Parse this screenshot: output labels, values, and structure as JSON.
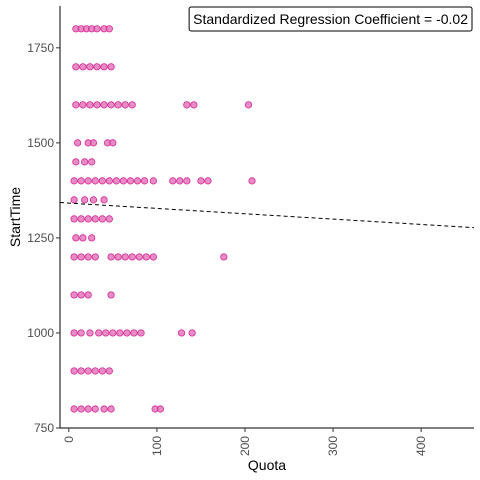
{
  "chart_data": {
    "type": "scatter",
    "title": "",
    "xlabel": "Quota",
    "ylabel": "StartTime",
    "xlim": [
      -10,
      460
    ],
    "ylim": [
      750,
      1860
    ],
    "x_ticks": [
      "0",
      "100",
      "200",
      "300",
      "400"
    ],
    "x_tick_values": [
      0,
      100,
      200,
      300,
      400
    ],
    "y_ticks": [
      "750",
      "1000",
      "1250",
      "1500",
      "1750"
    ],
    "y_tick_values": [
      750,
      1000,
      1250,
      1500,
      1750
    ],
    "grid": false,
    "annotation": "Standardized Regression Coefficient = -0.02",
    "point_color": "#D62797",
    "point_fill": "#E066B2",
    "line_color": "#000000",
    "regression_line": {
      "x": [
        -10,
        460
      ],
      "y": [
        1343,
        1277
      ]
    },
    "points": [
      {
        "x": 8,
        "y": 1800
      },
      {
        "x": 14,
        "y": 1800
      },
      {
        "x": 20,
        "y": 1800
      },
      {
        "x": 26,
        "y": 1800
      },
      {
        "x": 32,
        "y": 1800
      },
      {
        "x": 40,
        "y": 1800
      },
      {
        "x": 46,
        "y": 1800
      },
      {
        "x": 8,
        "y": 1700
      },
      {
        "x": 16,
        "y": 1700
      },
      {
        "x": 24,
        "y": 1700
      },
      {
        "x": 32,
        "y": 1700
      },
      {
        "x": 40,
        "y": 1700
      },
      {
        "x": 48,
        "y": 1700
      },
      {
        "x": 8,
        "y": 1600
      },
      {
        "x": 16,
        "y": 1600
      },
      {
        "x": 24,
        "y": 1600
      },
      {
        "x": 32,
        "y": 1600
      },
      {
        "x": 40,
        "y": 1600
      },
      {
        "x": 48,
        "y": 1600
      },
      {
        "x": 56,
        "y": 1600
      },
      {
        "x": 64,
        "y": 1600
      },
      {
        "x": 72,
        "y": 1600
      },
      {
        "x": 134,
        "y": 1600
      },
      {
        "x": 142,
        "y": 1600
      },
      {
        "x": 204,
        "y": 1600
      },
      {
        "x": 10,
        "y": 1500
      },
      {
        "x": 22,
        "y": 1500
      },
      {
        "x": 28,
        "y": 1500
      },
      {
        "x": 44,
        "y": 1500
      },
      {
        "x": 50,
        "y": 1500
      },
      {
        "x": 8,
        "y": 1450
      },
      {
        "x": 18,
        "y": 1450
      },
      {
        "x": 26,
        "y": 1450
      },
      {
        "x": 6,
        "y": 1400
      },
      {
        "x": 14,
        "y": 1400
      },
      {
        "x": 22,
        "y": 1400
      },
      {
        "x": 30,
        "y": 1400
      },
      {
        "x": 38,
        "y": 1400
      },
      {
        "x": 46,
        "y": 1400
      },
      {
        "x": 54,
        "y": 1400
      },
      {
        "x": 62,
        "y": 1400
      },
      {
        "x": 70,
        "y": 1400
      },
      {
        "x": 78,
        "y": 1400
      },
      {
        "x": 86,
        "y": 1400
      },
      {
        "x": 96,
        "y": 1400
      },
      {
        "x": 118,
        "y": 1400
      },
      {
        "x": 126,
        "y": 1400
      },
      {
        "x": 134,
        "y": 1400
      },
      {
        "x": 150,
        "y": 1400
      },
      {
        "x": 158,
        "y": 1400
      },
      {
        "x": 208,
        "y": 1400
      },
      {
        "x": 6,
        "y": 1350
      },
      {
        "x": 18,
        "y": 1350
      },
      {
        "x": 28,
        "y": 1350
      },
      {
        "x": 40,
        "y": 1350
      },
      {
        "x": 6,
        "y": 1300
      },
      {
        "x": 14,
        "y": 1300
      },
      {
        "x": 22,
        "y": 1300
      },
      {
        "x": 30,
        "y": 1300
      },
      {
        "x": 38,
        "y": 1300
      },
      {
        "x": 46,
        "y": 1300
      },
      {
        "x": 8,
        "y": 1250
      },
      {
        "x": 16,
        "y": 1250
      },
      {
        "x": 26,
        "y": 1250
      },
      {
        "x": 6,
        "y": 1200
      },
      {
        "x": 14,
        "y": 1200
      },
      {
        "x": 22,
        "y": 1200
      },
      {
        "x": 30,
        "y": 1200
      },
      {
        "x": 48,
        "y": 1200
      },
      {
        "x": 56,
        "y": 1200
      },
      {
        "x": 64,
        "y": 1200
      },
      {
        "x": 72,
        "y": 1200
      },
      {
        "x": 80,
        "y": 1200
      },
      {
        "x": 88,
        "y": 1200
      },
      {
        "x": 96,
        "y": 1200
      },
      {
        "x": 176,
        "y": 1200
      },
      {
        "x": 6,
        "y": 1100
      },
      {
        "x": 14,
        "y": 1100
      },
      {
        "x": 22,
        "y": 1100
      },
      {
        "x": 48,
        "y": 1100
      },
      {
        "x": 6,
        "y": 1000
      },
      {
        "x": 14,
        "y": 1000
      },
      {
        "x": 24,
        "y": 1000
      },
      {
        "x": 34,
        "y": 1000
      },
      {
        "x": 42,
        "y": 1000
      },
      {
        "x": 50,
        "y": 1000
      },
      {
        "x": 58,
        "y": 1000
      },
      {
        "x": 66,
        "y": 1000
      },
      {
        "x": 74,
        "y": 1000
      },
      {
        "x": 82,
        "y": 1000
      },
      {
        "x": 128,
        "y": 1000
      },
      {
        "x": 140,
        "y": 1000
      },
      {
        "x": 6,
        "y": 900
      },
      {
        "x": 14,
        "y": 900
      },
      {
        "x": 22,
        "y": 900
      },
      {
        "x": 30,
        "y": 900
      },
      {
        "x": 38,
        "y": 900
      },
      {
        "x": 46,
        "y": 900
      },
      {
        "x": 6,
        "y": 800
      },
      {
        "x": 14,
        "y": 800
      },
      {
        "x": 22,
        "y": 800
      },
      {
        "x": 30,
        "y": 800
      },
      {
        "x": 40,
        "y": 800
      },
      {
        "x": 48,
        "y": 800
      },
      {
        "x": 98,
        "y": 800
      },
      {
        "x": 104,
        "y": 800
      }
    ]
  }
}
